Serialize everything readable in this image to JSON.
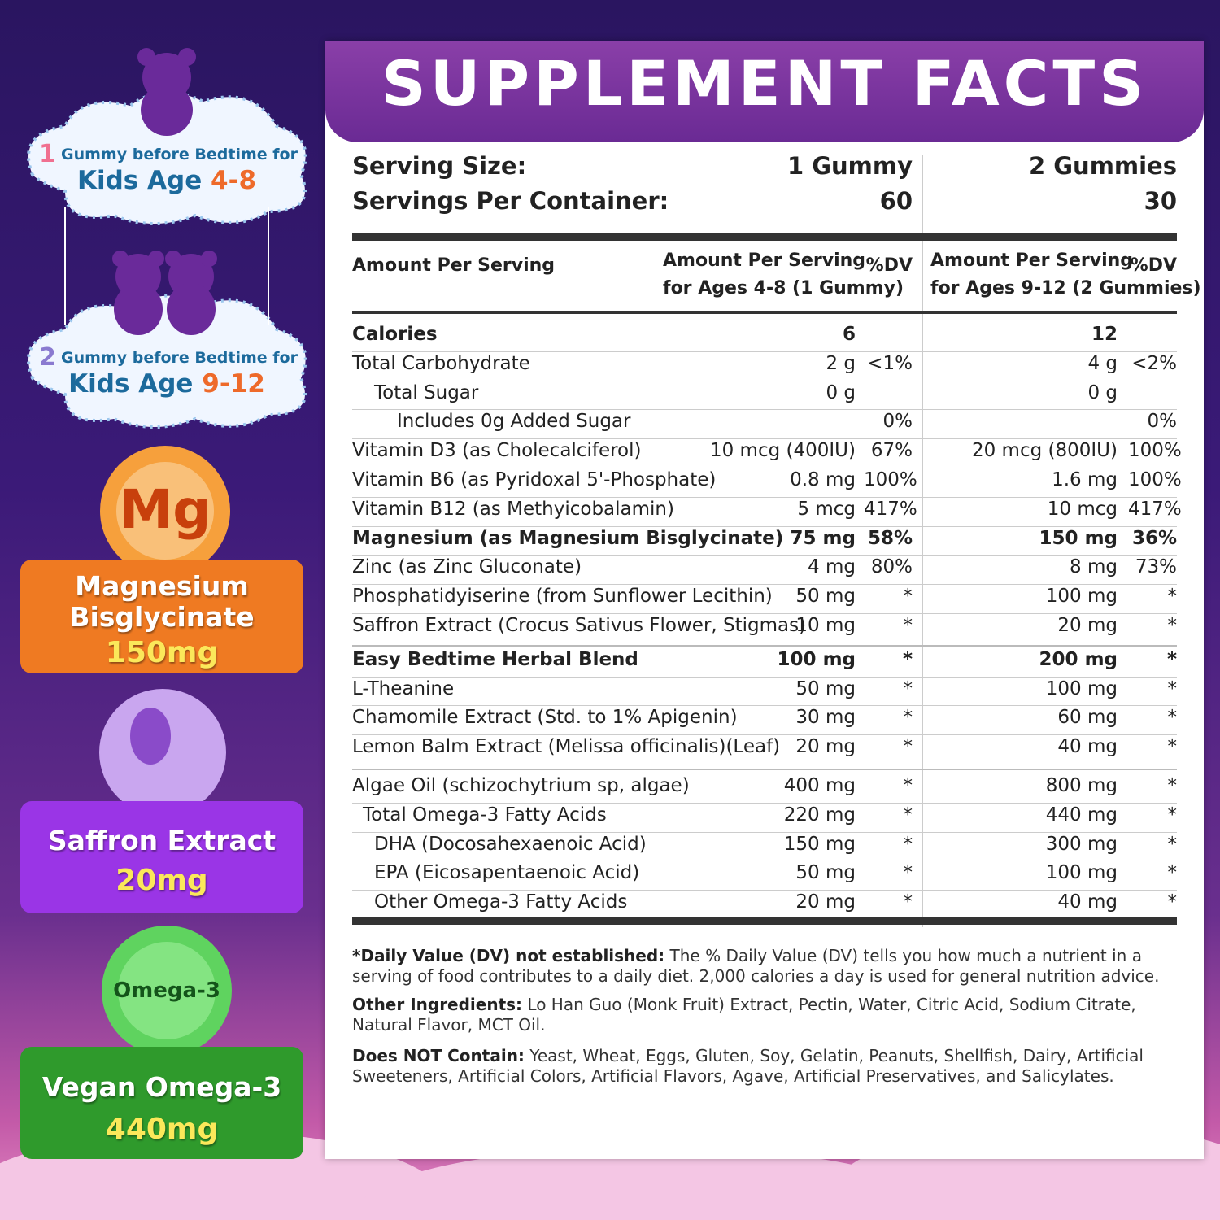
{
  "left": {
    "kids": [
      {
        "number": "1",
        "line1": "Gummy before Bedtime for",
        "label": "Kids Age",
        "age": "4-8"
      },
      {
        "number": "2",
        "line1": "Gummy before Bedtime for",
        "label": "Kids Age",
        "age": "9-12"
      }
    ],
    "badges": [
      {
        "icon": "Mg",
        "name": "Magnesium Bisglycinate",
        "amount": "150mg"
      },
      {
        "name": "Saffron Extract",
        "amount": "20mg"
      },
      {
        "icon": "Omega-3",
        "name": "Vegan Omega-3",
        "amount": "440mg"
      }
    ]
  },
  "facts": {
    "title": "SUPPLEMENT FACTS",
    "serving": [
      [
        "Serving Size:",
        "1 Gummy",
        "2 Gummies"
      ],
      [
        "Servings Per Container:",
        "60",
        "30"
      ]
    ],
    "header": {
      "col0": "Amount Per Serving",
      "col1": [
        "Amount Per Serving",
        "for Ages 4-8 (1 Gummy)"
      ],
      "dv1": "%DV",
      "col2": [
        "Amount Per Serving",
        "for Ages 9-12 (2 Gummies)"
      ],
      "dv2": "%DV"
    },
    "rows": [
      [
        "Calories",
        "6",
        null,
        "12",
        null
      ],
      [
        "Total Carbohydrate",
        "2 g",
        "<1%",
        "4 g",
        "<2%"
      ],
      [
        "Total Sugar",
        "0 g",
        null,
        "0 g",
        null
      ],
      [
        "Includes 0g Added Sugar",
        null,
        "0%",
        null,
        "0%"
      ],
      [
        "Vitamin D3 (as Cholecalciferol)",
        "10 mcg (400IU)",
        "67%",
        "20 mcg (800IU)",
        "100%"
      ],
      [
        "Vitamin B6 (as Pyridoxal 5'-Phosphate)",
        "0.8 mg",
        "100%",
        "1.6 mg",
        "100%"
      ],
      [
        "Vitamin B12 (as Methyicobalamin)",
        "5 mcg",
        "417%",
        "10 mcg",
        "417%"
      ],
      [
        "Magnesium (as Magnesium Bisglycinate)",
        "75 mg",
        "58%",
        "150 mg",
        "36%"
      ],
      [
        "Zinc (as Zinc Gluconate)",
        "4 mg",
        "80%",
        "8 mg",
        "73%"
      ],
      [
        "Phosphatidyiserine (from Sunflower Lecithin)",
        "50 mg",
        "*",
        "100 mg",
        "*"
      ],
      [
        "Saffron Extract (Crocus Sativus Flower, Stigmas)",
        "10 mg",
        "*",
        "20 mg",
        "*"
      ],
      [
        "Easy Bedtime Herbal Blend",
        "100 mg",
        "*",
        "200 mg",
        "*"
      ],
      [
        "L-Theanine",
        "50 mg",
        "*",
        "100 mg",
        "*"
      ],
      [
        "Chamomile Extract (Std. to 1% Apigenin)",
        "30 mg",
        "*",
        "60 mg",
        "*"
      ],
      [
        "Lemon Balm Extract (Melissa officinalis)(Leaf)",
        "20 mg",
        "*",
        "40 mg",
        "*"
      ],
      [
        "Algae Oil (schizochytrium sp, algae)",
        "400 mg",
        "*",
        "800 mg",
        "*"
      ],
      [
        "Total Omega-3 Fatty Acids",
        "220 mg",
        "*",
        "440 mg",
        "*"
      ],
      [
        "DHA (Docosahexaenoic Acid)",
        "150 mg",
        "*",
        "300 mg",
        "*"
      ],
      [
        "EPA (Eicosapentaenoic Acid)",
        "50 mg",
        "*",
        "100 mg",
        "*"
      ],
      [
        "Other Omega-3 Fatty Acids",
        "20 mg",
        "*",
        "40 mg",
        "*"
      ]
    ],
    "notes": [
      {
        "label": "*Daily Value (DV) not established:",
        "text": "The % Daily Value (DV) tells you how much a nutrient in a serving of food contributes to a daily diet. 2,000 calories a day is used for general nutrition advice."
      },
      {
        "label": "Other Ingredients:",
        "text": "Lo Han Guo (Monk Fruit) Extract, Pectin, Water, Citric Acid, Sodium Citrate, Natural Flavor, MCT Oil."
      },
      {
        "label": "Does NOT Contain:",
        "text": "Yeast, Wheat, Eggs, Gluten, Soy, Gelatin, Peanuts, Shellfish, Dairy, Artificial Sweeteners, Artificial Colors, Artificial Flavors, Agave, Artificial Preservatives, and Salicylates."
      }
    ]
  }
}
